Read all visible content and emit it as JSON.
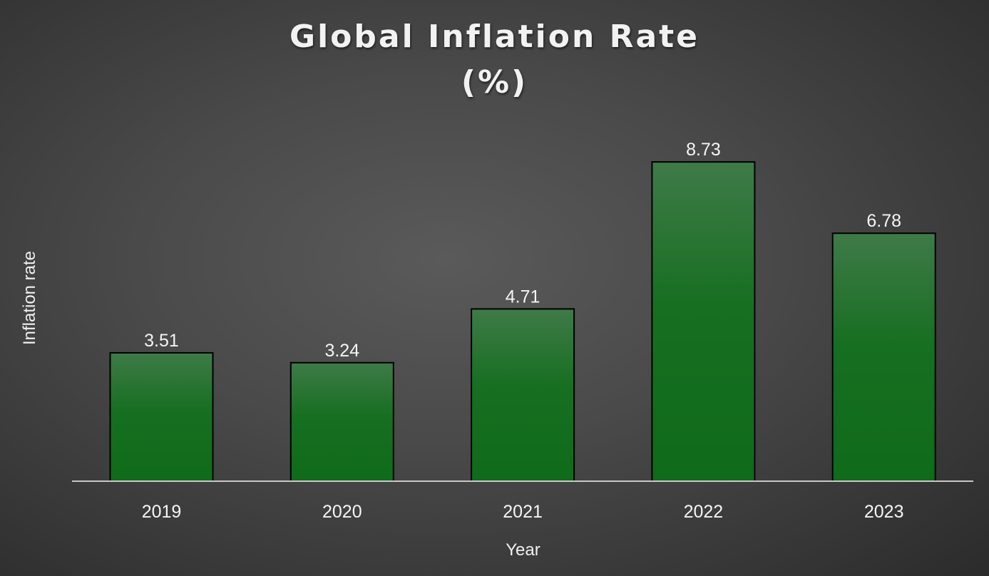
{
  "chart_data": {
    "type": "bar",
    "title": "Global Inflation Rate",
    "subtitle": "(%)",
    "xlabel": "Year",
    "ylabel": "Inflation rate",
    "categories": [
      "2019",
      "2020",
      "2021",
      "2022",
      "2023"
    ],
    "values": [
      3.51,
      3.24,
      4.71,
      8.73,
      6.78
    ],
    "data_labels": [
      "3.51",
      "3.24",
      "4.71",
      "8.73",
      "6.78"
    ],
    "ylim": [
      0,
      10
    ],
    "grid": false,
    "legend": "none",
    "bar_color_top": "#3f7a48",
    "bar_color_bottom": "#0f6b1a",
    "bar_outline": "#000000"
  }
}
